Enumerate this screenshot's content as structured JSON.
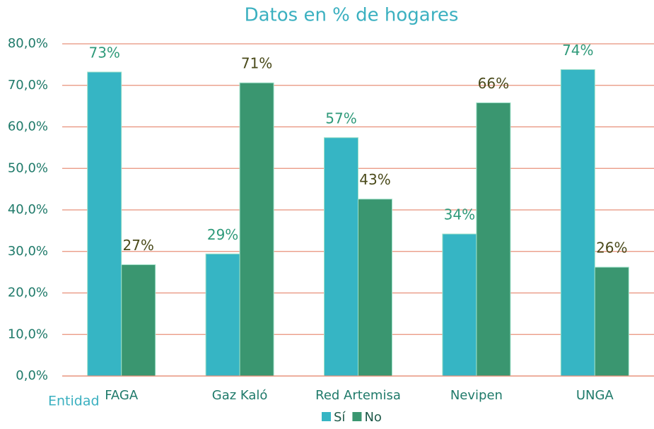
{
  "chart_data": {
    "type": "bar",
    "title": "Datos en % de hogares",
    "x_label": "Entidad",
    "categories": [
      "FAGA",
      "Gaz Kaló",
      "Red Artemisa",
      "Nevipen",
      "UNGA"
    ],
    "series": [
      {
        "name": "Sí",
        "color": "#36b5c4",
        "values": [
          73.2,
          29.4,
          57.4,
          34.2,
          73.8
        ],
        "value_labels": [
          "73%",
          "29%",
          "57%",
          "34%",
          "74%"
        ]
      },
      {
        "name": "No",
        "color": "#3a9670",
        "values": [
          26.8,
          70.6,
          42.6,
          65.8,
          26.2
        ],
        "value_labels": [
          "27%",
          "71%",
          "43%",
          "66%",
          "26%"
        ]
      }
    ],
    "ylim": [
      0,
      80
    ],
    "yticks": [
      {
        "value": 0,
        "label": "0,0%"
      },
      {
        "value": 10,
        "label": "10,0%"
      },
      {
        "value": 20,
        "label": "20,0%"
      },
      {
        "value": 30,
        "label": "30,0%"
      },
      {
        "value": 40,
        "label": "40,0%"
      },
      {
        "value": 50,
        "label": "50,0%"
      },
      {
        "value": 60,
        "label": "60,0%"
      },
      {
        "value": 70,
        "label": "70,0%"
      },
      {
        "value": 80,
        "label": "80,0%"
      }
    ],
    "grid": true,
    "legend": "bottom"
  }
}
